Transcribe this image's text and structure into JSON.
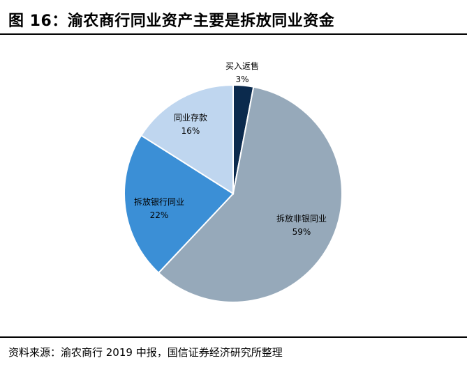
{
  "header": {
    "title": "图 16：渝农商行同业资产主要是拆放同业资金"
  },
  "footer": {
    "source": "资料来源：渝农商行 2019 中报，国信证券经济研究所整理"
  },
  "chart_data": {
    "type": "pie",
    "title": "",
    "slices": [
      {
        "label": "买入返售",
        "value": 3,
        "value_label": "3%",
        "color": "#0b2a4d"
      },
      {
        "label": "拆放非银同业",
        "value": 59,
        "value_label": "59%",
        "color": "#96a9ba"
      },
      {
        "label": "拆放银行同业",
        "value": 22,
        "value_label": "22%",
        "color": "#3b8fd6"
      },
      {
        "label": "同业存款",
        "value": 16,
        "value_label": "16%",
        "color": "#bfd6ef"
      }
    ]
  }
}
